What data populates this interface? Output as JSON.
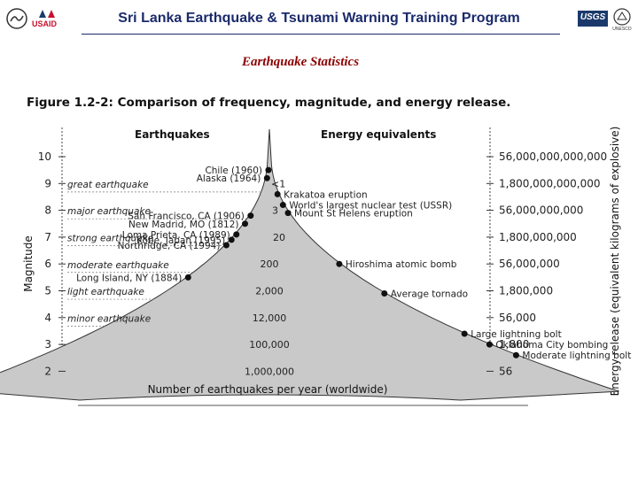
{
  "header": {
    "title": "Sri Lanka Earthquake & Tsunami Warning Training Program",
    "subtitle": "Earthquake Statistics",
    "logo_usaid": "USAID",
    "logo_usgs": "USGS",
    "logo_unesco": "UNESCO"
  },
  "figure": {
    "title": "Figure 1.2-2: Comparison of frequency, magnitude, and energy release.",
    "left_heading": "Earthquakes",
    "right_heading": "Energy equivalents",
    "left_axis_label": "Magnitude",
    "right_axis_label": "Energy release (equivalent kilograms of explosive)",
    "bottom_label": "Number of earthquakes per year (worldwide)",
    "magnitudes": [
      "10",
      "9",
      "8",
      "7",
      "6",
      "5",
      "4",
      "3",
      "2"
    ],
    "energies": [
      "56,000,000,000,000",
      "1,800,000,000,000",
      "56,000,000,000",
      "1,800,000,000",
      "56,000,000",
      "1,800,000",
      "56,000",
      "1,800",
      "56"
    ],
    "categories": [
      "great earthquake",
      "major earthquake",
      "strong earthquake",
      "moderate earthquake",
      "light earthquake",
      "minor earthquake"
    ],
    "counts": [
      "<1",
      "3",
      "20",
      "200",
      "2,000",
      "12,000",
      "100,000",
      "1,000,000"
    ],
    "quakes": [
      {
        "label": "Chile (1960)",
        "magnitude": 9.5
      },
      {
        "label": "Alaska (1964)",
        "magnitude": 9.2
      },
      {
        "label": "San Francisco, CA (1906)",
        "magnitude": 7.8
      },
      {
        "label": "New Madrid, MO (1812)",
        "magnitude": 7.5
      },
      {
        "label": "Loma Prieta, CA (1989)",
        "magnitude": 7.1
      },
      {
        "label": "Kobe, Japan (1995)",
        "magnitude": 6.9
      },
      {
        "label": "Northridge, CA (1994)",
        "magnitude": 6.7
      },
      {
        "label": "Long Island, NY (1884)",
        "magnitude": 5.5
      }
    ],
    "energy_events": [
      {
        "label": "Krakatoa eruption",
        "magnitude": 8.6
      },
      {
        "label": "World's largest nuclear test (USSR)",
        "magnitude": 8.2
      },
      {
        "label": "Mount St Helens eruption",
        "magnitude": 7.9
      },
      {
        "label": "Hiroshima atomic bomb",
        "magnitude": 6.0
      },
      {
        "label": "Average tornado",
        "magnitude": 4.9
      },
      {
        "label": "Large lightning bolt",
        "magnitude": 3.4
      },
      {
        "label": "Oklahoma City bombing",
        "magnitude": 3.0
      },
      {
        "label": "Moderate lightning bolt",
        "magnitude": 2.6
      }
    ]
  }
}
